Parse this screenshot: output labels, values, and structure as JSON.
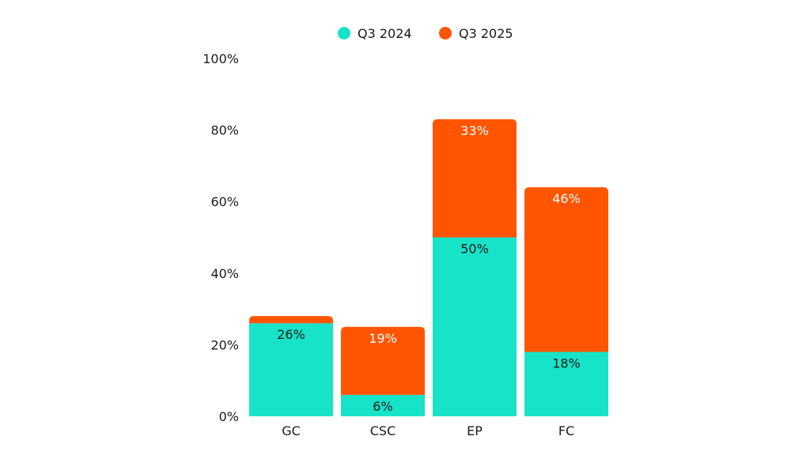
{
  "chart_data": {
    "type": "bar",
    "stacked": true,
    "categories": [
      "GC",
      "CSC",
      "EP",
      "FC"
    ],
    "series": [
      {
        "name": "Q3 2024",
        "color": "#17E3C9",
        "values": [
          26,
          6,
          50,
          18
        ],
        "labels": [
          "26%",
          "6%",
          "50%",
          "18%"
        ]
      },
      {
        "name": "Q3 2025",
        "color": "#FF5500",
        "values": [
          2,
          19,
          33,
          46
        ],
        "labels": [
          "",
          "19%",
          "33%",
          "46%"
        ]
      }
    ],
    "ylim": [
      0,
      100
    ],
    "yticks": [
      "0%",
      "20%",
      "40%",
      "60%",
      "80%",
      "100%"
    ],
    "ytick_values": [
      0,
      20,
      40,
      60,
      80,
      100
    ],
    "grid": false,
    "legend_position": "top-center",
    "title": "",
    "xlabel": "",
    "ylabel": ""
  }
}
